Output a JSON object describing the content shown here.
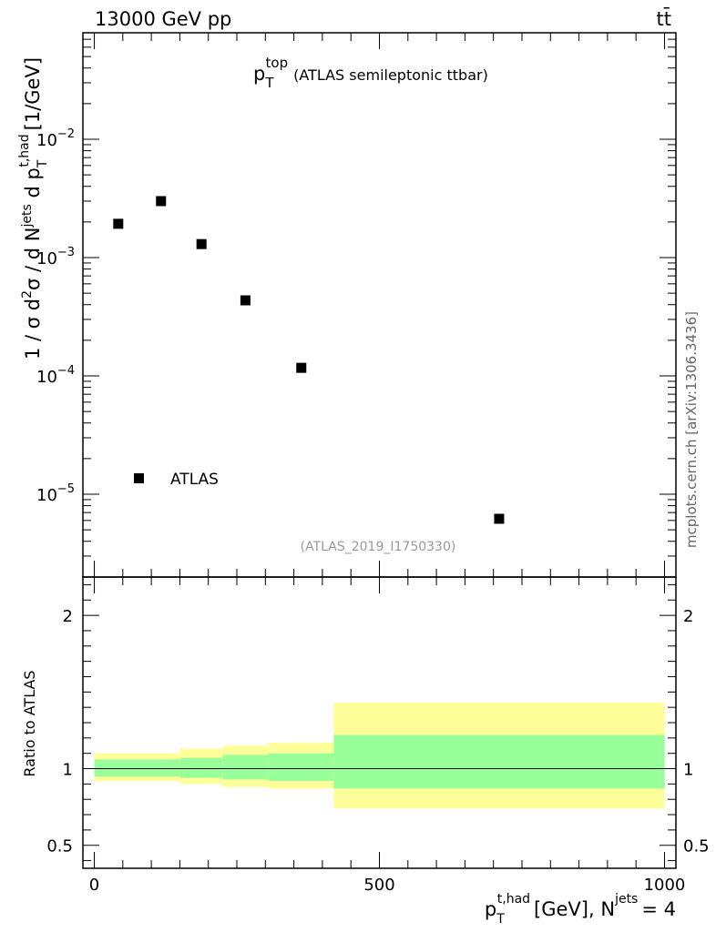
{
  "header": {
    "energy_label": "13000 GeV pp",
    "process_label": "tt̄"
  },
  "main_title": {
    "p": "p",
    "sub": "T",
    "sup": "top",
    "rest": "(ATLAS semileptonic ttbar)"
  },
  "analysis_id": "(ATLAS_2019_I1750330)",
  "watermark": "mcplots.cern.ch [arXiv:1306.3436]",
  "y_axis_label": {
    "pre": "1 / σ d",
    "sup1": "2",
    "mid1": "σ / d N",
    "sup2": "jets",
    "mid2": " d p",
    "sub3": "T",
    "sup3": "t,had",
    "unit": "[1/GeV]"
  },
  "ratio_ylabel": "Ratio to ATLAS",
  "x_axis_label": {
    "p": "p",
    "sub": "T",
    "sup": "t,had",
    "unit": "[GeV], N",
    "sup2": "jets",
    "eq": "= 4"
  },
  "legend": {
    "entries": [
      "ATLAS"
    ]
  },
  "chart_data": {
    "type": "scatter",
    "x_range": [
      -20,
      1020
    ],
    "y_log": true,
    "y_range_exp": [
      -5.7,
      -1.1
    ],
    "y_tick_labels": [
      {
        "exp": -2,
        "text": "10",
        "sup": "−2"
      },
      {
        "exp": -3,
        "text": "10",
        "sup": "−3"
      },
      {
        "exp": -4,
        "text": "10",
        "sup": "−4"
      },
      {
        "exp": -5,
        "text": "10",
        "sup": "−5"
      }
    ],
    "x_tick_labels": [
      {
        "value": 0,
        "text": "0"
      },
      {
        "value": 500,
        "text": "500"
      },
      {
        "value": 1000,
        "text": "1000"
      }
    ],
    "series": [
      {
        "name": "ATLAS",
        "points": [
          {
            "x": 42,
            "y": 0.00193
          },
          {
            "x": 117,
            "y": 0.003
          },
          {
            "x": 188,
            "y": 0.0013
          },
          {
            "x": 265,
            "y": 0.000435
          },
          {
            "x": 363,
            "y": 0.000117
          },
          {
            "x": 710,
            "y": 6.2e-06
          }
        ]
      }
    ],
    "ratio": {
      "y_range": [
        0.35,
        2.25
      ],
      "y_tick_labels": [
        {
          "value": 2,
          "text": "2"
        },
        {
          "value": 1,
          "text": "1"
        },
        {
          "value": 0.5,
          "text": "0.5"
        }
      ],
      "bins": [
        {
          "x0": 0,
          "x1": 150,
          "green_lo": 0.95,
          "green_hi": 1.06,
          "yellow_lo": 0.92,
          "yellow_hi": 1.1
        },
        {
          "x0": 150,
          "x1": 225,
          "green_lo": 0.94,
          "green_hi": 1.07,
          "yellow_lo": 0.9,
          "yellow_hi": 1.13
        },
        {
          "x0": 225,
          "x1": 305,
          "green_lo": 0.93,
          "green_hi": 1.09,
          "yellow_lo": 0.88,
          "yellow_hi": 1.15
        },
        {
          "x0": 305,
          "x1": 420,
          "green_lo": 0.92,
          "green_hi": 1.1,
          "yellow_lo": 0.87,
          "yellow_hi": 1.17
        },
        {
          "x0": 420,
          "x1": 1000,
          "green_lo": 0.87,
          "green_hi": 1.22,
          "yellow_lo": 0.74,
          "yellow_hi": 1.43
        }
      ]
    },
    "colors": {
      "green": "#99ff99",
      "yellow": "#ffff99",
      "marker": "#000000",
      "analysis_id": "#999999"
    }
  }
}
